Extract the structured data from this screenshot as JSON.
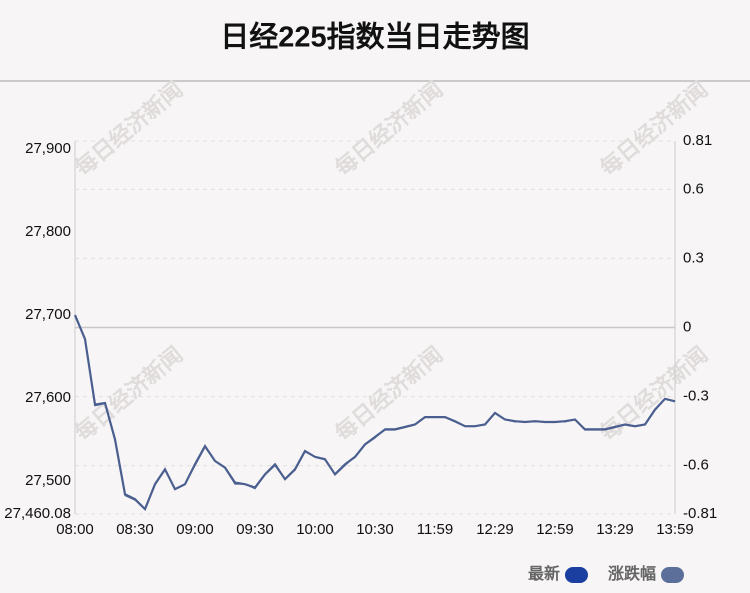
{
  "chart_data": {
    "type": "line",
    "title": "日经225指数当日走势图",
    "watermark": "每日经济新闻",
    "categories": [
      "08:00",
      null,
      null,
      null,
      null,
      null,
      "08:30",
      null,
      null,
      null,
      null,
      null,
      "09:00",
      null,
      null,
      null,
      null,
      null,
      "09:30",
      null,
      null,
      null,
      null,
      null,
      "10:00",
      null,
      null,
      null,
      null,
      null,
      "10:30",
      null,
      null,
      null,
      null,
      null,
      "11:59",
      null,
      null,
      null,
      null,
      null,
      "12:29",
      null,
      null,
      null,
      null,
      null,
      "12:59",
      null,
      null,
      null,
      null,
      null,
      "13:29",
      null,
      null,
      null,
      null,
      null,
      "13:59"
    ],
    "series": [
      {
        "name": "最新",
        "color": "#1a3fa0",
        "line_color": "#4a5f8f",
        "values": [
          27700,
          27671,
          27592,
          27594,
          27550,
          27484,
          27478,
          27466,
          27496,
          27514,
          27490,
          27496,
          27520,
          27542,
          27524,
          27516,
          27498,
          27496,
          27492,
          27508,
          27520,
          27502,
          27514,
          27536,
          27529,
          27526,
          27508,
          27520,
          27529,
          27544,
          27553,
          27562,
          27562,
          27565,
          27568,
          27577,
          27577,
          27577,
          27572,
          27566,
          27566,
          27568,
          27582,
          27574,
          27572,
          27571,
          27572,
          27571,
          27571,
          27572,
          27574,
          27562,
          27562,
          27562,
          27565,
          27568,
          27566,
          27568,
          27586,
          27599,
          27596
        ]
      },
      {
        "name": "涨跌幅",
        "color": "#5b6f9a",
        "line_color": "#5b6f9a",
        "axis": "y2",
        "values": [
          0.05,
          -0.05,
          -0.34,
          -0.33,
          -0.49,
          -0.73,
          -0.75,
          -0.79,
          -0.68,
          -0.62,
          -0.7,
          -0.68,
          -0.6,
          -0.52,
          -0.58,
          -0.61,
          -0.68,
          -0.68,
          -0.7,
          -0.64,
          -0.6,
          -0.66,
          -0.62,
          -0.54,
          -0.56,
          -0.57,
          -0.64,
          -0.6,
          -0.56,
          -0.51,
          -0.48,
          -0.44,
          -0.44,
          -0.43,
          -0.42,
          -0.39,
          -0.39,
          -0.39,
          -0.41,
          -0.43,
          -0.43,
          -0.42,
          -0.37,
          -0.4,
          -0.41,
          -0.41,
          -0.41,
          -0.41,
          -0.41,
          -0.41,
          -0.4,
          -0.44,
          -0.44,
          -0.44,
          -0.43,
          -0.42,
          -0.43,
          -0.42,
          -0.36,
          -0.31,
          -0.32
        ]
      }
    ],
    "ylim": [
      27460.08,
      27909.92
    ],
    "yticks": [
      {
        "value": 27460.08,
        "label": "27,460.08"
      },
      {
        "value": 27500,
        "label": "27,500"
      },
      {
        "value": 27600,
        "label": "27,600"
      },
      {
        "value": 27700,
        "label": "27,700"
      },
      {
        "value": 27800,
        "label": "27,800"
      },
      {
        "value": 27900,
        "label": "27,900"
      }
    ],
    "y2lim": [
      -0.81,
      0.81
    ],
    "y2ticks": [
      -0.81,
      -0.6,
      -0.3,
      0,
      0.3,
      0.6,
      0.81
    ],
    "grid": true,
    "legend": "bottom-right"
  }
}
